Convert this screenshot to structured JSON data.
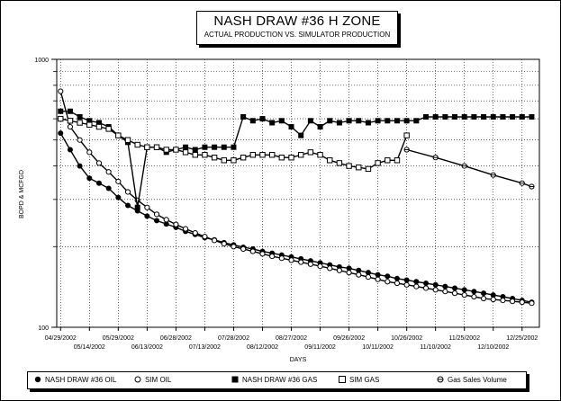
{
  "chart_data": {
    "type": "line",
    "title": "NASH DRAW #36 H ZONE",
    "subtitle": "ACTUAL PRODUCTION VS. SIMULATOR PRODUCTION",
    "xlabel": "DAYS",
    "ylabel": "BOPD & MCFGD",
    "y_scale": "log",
    "ylim": [
      100,
      1000
    ],
    "y_tick_labels": [
      "100",
      "1000"
    ],
    "xlim": [
      "2002-04-27",
      "2003-01-03"
    ],
    "x_tick_labels_upper": [
      "04/29/2002",
      "05/29/2002",
      "06/28/2002",
      "07/28/2002",
      "08/27/2002",
      "09/26/2002",
      "10/26/2002",
      "11/25/2002",
      "12/25/2002"
    ],
    "x_tick_labels_lower": [
      "05/14/2002",
      "06/13/2002",
      "07/13/2002",
      "08/12/2002",
      "09/11/2002",
      "10/11/2002",
      "11/10/2002",
      "12/10/2002"
    ],
    "x_tick_dates_upper": [
      "2002-04-29",
      "2002-05-29",
      "2002-06-28",
      "2002-07-28",
      "2002-08-27",
      "2002-09-26",
      "2002-10-26",
      "2002-11-25",
      "2002-12-25"
    ],
    "x_tick_dates_lower": [
      "2002-05-14",
      "2002-06-13",
      "2002-07-13",
      "2002-08-12",
      "2002-09-11",
      "2002-10-11",
      "2002-11-10",
      "2002-12-10"
    ],
    "grid": true,
    "legend_position": "bottom",
    "series": [
      {
        "name": "NASH DRAW #36 OIL",
        "marker": "filled-circle",
        "color": "#000000",
        "x": [
          "2002-04-29",
          "2002-05-04",
          "2002-05-09",
          "2002-05-14",
          "2002-05-19",
          "2002-05-24",
          "2002-05-29",
          "2002-06-03",
          "2002-06-08",
          "2002-06-13",
          "2002-06-18",
          "2002-06-23",
          "2002-06-28",
          "2002-07-03",
          "2002-07-08",
          "2002-07-13",
          "2002-07-18",
          "2002-07-23",
          "2002-07-28",
          "2002-08-02",
          "2002-08-07",
          "2002-08-12",
          "2002-08-17",
          "2002-08-22",
          "2002-08-27",
          "2002-09-01",
          "2002-09-06",
          "2002-09-11",
          "2002-09-16",
          "2002-09-21",
          "2002-09-26",
          "2002-10-01",
          "2002-10-06",
          "2002-10-11",
          "2002-10-16",
          "2002-10-21",
          "2002-10-26",
          "2002-10-31",
          "2002-11-05",
          "2002-11-10",
          "2002-11-15",
          "2002-11-20",
          "2002-11-25",
          "2002-11-30",
          "2002-12-05",
          "2002-12-10",
          "2002-12-15",
          "2002-12-20",
          "2002-12-25",
          "2002-12-30"
        ],
        "values": [
          530,
          460,
          400,
          360,
          345,
          330,
          305,
          285,
          272,
          260,
          250,
          243,
          236,
          228,
          222,
          216,
          212,
          207,
          203,
          199,
          196,
          192,
          189,
          186,
          183,
          180,
          177,
          174,
          171,
          168,
          166,
          163,
          160,
          157,
          155,
          152,
          150,
          148,
          146,
          144,
          142,
          140,
          138,
          136,
          134,
          132,
          130,
          128,
          126,
          124
        ]
      },
      {
        "name": "SIM OIL",
        "marker": "open-circle",
        "color": "#000000",
        "x": [
          "2002-04-29",
          "2002-05-04",
          "2002-05-09",
          "2002-05-14",
          "2002-05-19",
          "2002-05-24",
          "2002-05-29",
          "2002-06-03",
          "2002-06-08",
          "2002-06-13",
          "2002-06-18",
          "2002-06-23",
          "2002-06-28",
          "2002-07-03",
          "2002-07-08",
          "2002-07-13",
          "2002-07-18",
          "2002-07-23",
          "2002-07-28",
          "2002-08-02",
          "2002-08-07",
          "2002-08-12",
          "2002-08-17",
          "2002-08-22",
          "2002-08-27",
          "2002-09-01",
          "2002-09-06",
          "2002-09-11",
          "2002-09-16",
          "2002-09-21",
          "2002-09-26",
          "2002-10-01",
          "2002-10-06",
          "2002-10-11",
          "2002-10-16",
          "2002-10-21",
          "2002-10-26",
          "2002-10-31",
          "2002-11-05",
          "2002-11-10",
          "2002-11-15",
          "2002-11-20",
          "2002-11-25",
          "2002-11-30",
          "2002-12-05",
          "2002-12-10",
          "2002-12-15",
          "2002-12-20",
          "2002-12-25",
          "2002-12-30"
        ],
        "values": [
          760,
          560,
          500,
          450,
          410,
          380,
          350,
          320,
          298,
          280,
          264,
          252,
          242,
          233,
          225,
          218,
          211,
          205,
          200,
          196,
          192,
          188,
          184,
          181,
          178,
          175,
          172,
          169,
          166,
          163,
          160,
          157,
          154,
          151,
          148,
          146,
          144,
          142,
          140,
          138,
          136,
          134,
          132,
          130,
          128,
          127,
          126,
          125,
          124,
          123
        ]
      },
      {
        "name": "NASH DRAW #36 GAS",
        "marker": "filled-square",
        "color": "#000000",
        "x": [
          "2002-04-29",
          "2002-05-04",
          "2002-05-09",
          "2002-05-14",
          "2002-05-19",
          "2002-05-24",
          "2002-05-29",
          "2002-06-03",
          "2002-06-08",
          "2002-06-13",
          "2002-06-18",
          "2002-06-23",
          "2002-06-28",
          "2002-07-03",
          "2002-07-08",
          "2002-07-13",
          "2002-07-18",
          "2002-07-23",
          "2002-07-28",
          "2002-08-02",
          "2002-08-07",
          "2002-08-12",
          "2002-08-17",
          "2002-08-22",
          "2002-08-27",
          "2002-09-01",
          "2002-09-06",
          "2002-09-11",
          "2002-09-16",
          "2002-09-21",
          "2002-09-26",
          "2002-10-01",
          "2002-10-06",
          "2002-10-11",
          "2002-10-16",
          "2002-10-21",
          "2002-10-26",
          "2002-10-31",
          "2002-11-05",
          "2002-11-10",
          "2002-11-15",
          "2002-11-20",
          "2002-11-25",
          "2002-11-30",
          "2002-12-05",
          "2002-12-10",
          "2002-12-15",
          "2002-12-20",
          "2002-12-25",
          "2002-12-30"
        ],
        "values": [
          640,
          640,
          610,
          590,
          580,
          560,
          520,
          490,
          280,
          470,
          470,
          450,
          460,
          470,
          460,
          470,
          470,
          470,
          470,
          610,
          590,
          600,
          580,
          590,
          560,
          520,
          590,
          560,
          590,
          580,
          590,
          590,
          580,
          590,
          590,
          590,
          590,
          590,
          610,
          610,
          610,
          610,
          610,
          610,
          610,
          610,
          610,
          610,
          610,
          610
        ]
      },
      {
        "name": "SIM GAS",
        "marker": "open-square",
        "color": "#000000",
        "x": [
          "2002-04-29",
          "2002-05-04",
          "2002-05-09",
          "2002-05-14",
          "2002-05-19",
          "2002-05-24",
          "2002-05-29",
          "2002-06-03",
          "2002-06-08",
          "2002-06-13",
          "2002-06-18",
          "2002-06-23",
          "2002-06-28",
          "2002-07-03",
          "2002-07-08",
          "2002-07-13",
          "2002-07-18",
          "2002-07-23",
          "2002-07-28",
          "2002-08-02",
          "2002-08-07",
          "2002-08-12",
          "2002-08-17",
          "2002-08-22",
          "2002-08-27",
          "2002-09-01",
          "2002-09-06",
          "2002-09-11",
          "2002-09-16",
          "2002-09-21",
          "2002-09-26",
          "2002-10-01",
          "2002-10-06",
          "2002-10-11",
          "2002-10-16",
          "2002-10-21",
          "2002-10-26"
        ],
        "values": [
          600,
          590,
          580,
          570,
          560,
          550,
          520,
          500,
          480,
          470,
          470,
          460,
          460,
          450,
          440,
          440,
          430,
          420,
          420,
          430,
          440,
          440,
          440,
          430,
          430,
          440,
          450,
          440,
          420,
          410,
          400,
          395,
          390,
          410,
          420,
          420,
          520
        ]
      },
      {
        "name": "Gas Sales Volume",
        "marker": "circled-cross",
        "color": "#000000",
        "x": [
          "2002-10-26",
          "2002-11-10",
          "2002-11-25",
          "2002-12-10",
          "2002-12-25",
          "2002-12-30"
        ],
        "values": [
          460,
          430,
          400,
          370,
          345,
          335
        ]
      }
    ]
  }
}
